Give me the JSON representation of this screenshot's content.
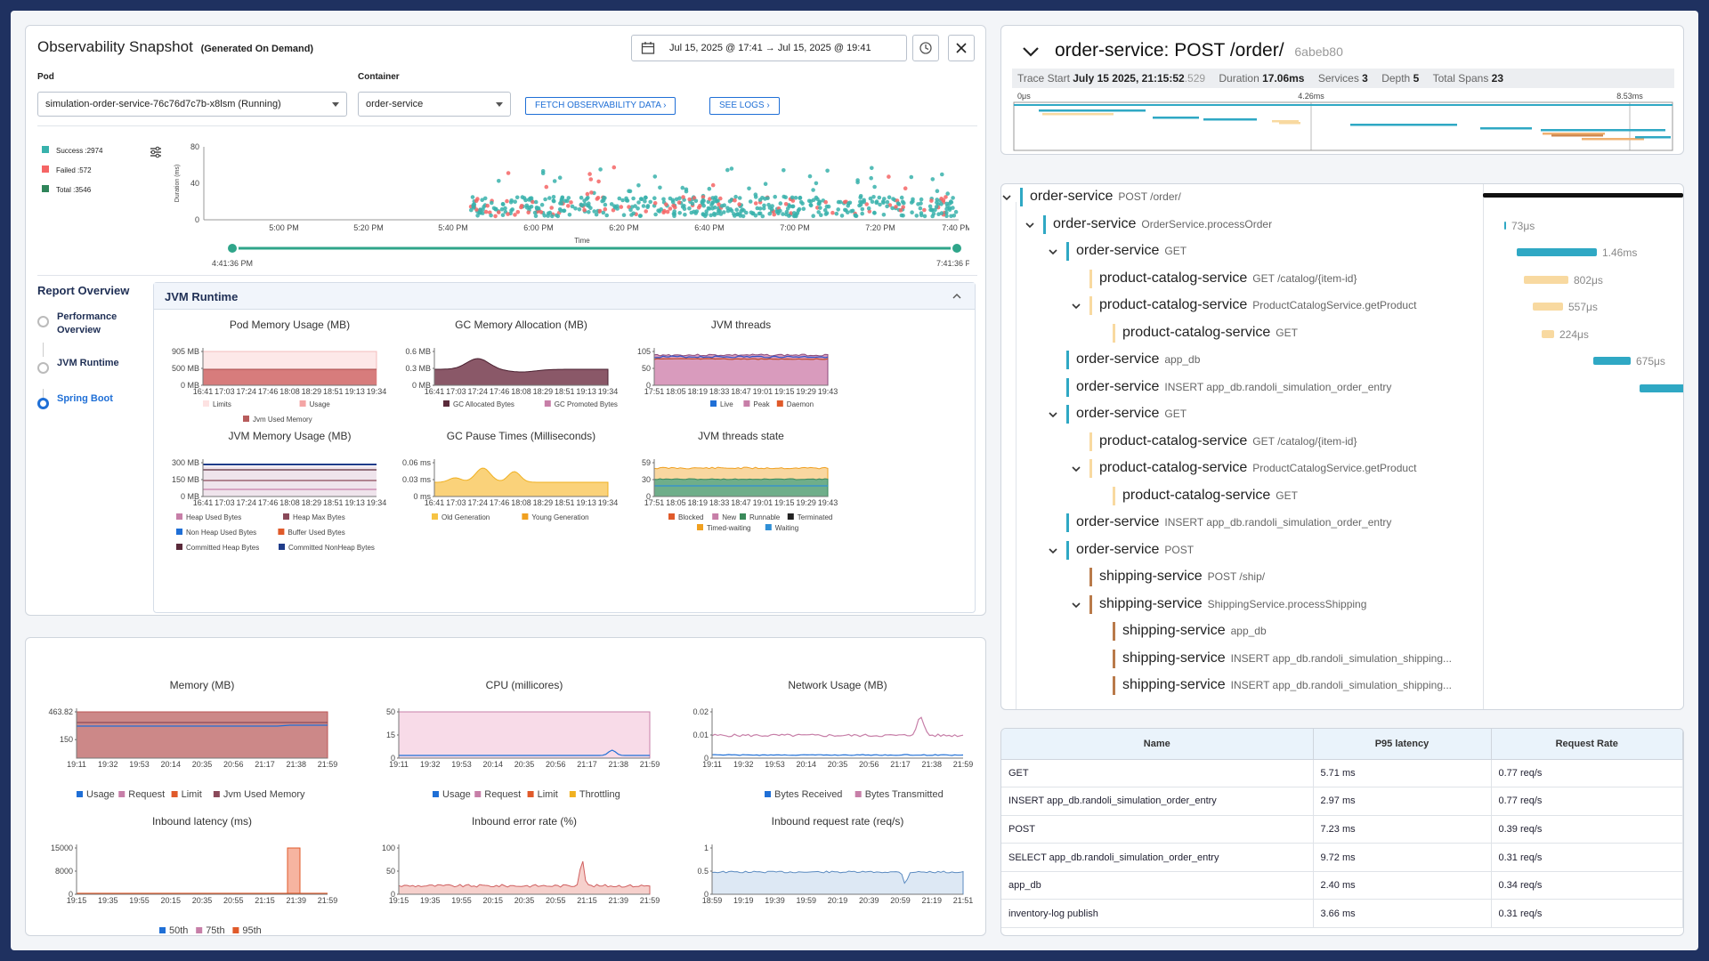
{
  "snapshot": {
    "title": "Observability Snapshot",
    "subtitle": "(Generated On Demand)",
    "date_range": "Jul 15, 2025 @ 17:41 → Jul 15, 2025 @ 19:41",
    "pod_label": "Pod",
    "pod_value": "simulation-order-service-76c76d7c7b-x8lsm (Running)",
    "container_label": "Container",
    "container_value": "order-service",
    "fetch_button": "FETCH OBSERVABILITY DATA",
    "logs_button": "SEE LOGS"
  },
  "scatter": {
    "legend": [
      {
        "label": "Success :2974",
        "color": "#38b2ac"
      },
      {
        "label": "Failed :572",
        "color": "#f56565"
      },
      {
        "label": "Total :3546",
        "color": "#2f855a"
      }
    ],
    "ylabel": "Duration (ms)",
    "xlabel": "Time",
    "yticks": [
      "80",
      "40",
      "0"
    ],
    "xticks": [
      "5:00 PM",
      "5:20 PM",
      "5:40 PM",
      "6:00 PM",
      "6:20 PM",
      "6:40 PM",
      "7:00 PM",
      "7:20 PM",
      "7:40 PM"
    ],
    "range_start": "4:41:36 PM",
    "range_end": "7:41:36 PM"
  },
  "report": {
    "title": "Report Overview",
    "items": [
      "Performance Overview",
      "JVM Runtime",
      "Spring Boot"
    ],
    "selected_index": 2,
    "section_title": "JVM Runtime"
  },
  "jvm_charts": [
    {
      "title": "Pod Memory Usage (MB)",
      "yticks": [
        "905 MB",
        "500 MB",
        "0 MB"
      ],
      "xticks": [
        "16:41",
        "17:03",
        "17:24",
        "17:46",
        "18:08",
        "18:29",
        "18:51",
        "19:13",
        "19:34"
      ],
      "legend": [
        {
          "label": "Limits",
          "color": "#fde2e2"
        },
        {
          "label": "Usage",
          "color": "#f4a5a5"
        },
        {
          "label": "Jvm Used Memory",
          "color": "#b85c5c"
        }
      ]
    },
    {
      "title": "GC Memory Allocation (MB)",
      "yticks": [
        "0.6 MB",
        "0.3 MB",
        "0 MB"
      ],
      "xticks": [
        "16:41",
        "17:03",
        "17:24",
        "17:46",
        "18:08",
        "18:29",
        "18:51",
        "19:13",
        "19:34"
      ],
      "legend": [
        {
          "label": "GC Allocated Bytes",
          "color": "#5a2a3a"
        },
        {
          "label": "GC Promoted Bytes",
          "color": "#c77fa8"
        }
      ]
    },
    {
      "title": "JVM threads",
      "yticks": [
        "105",
        "50",
        "0"
      ],
      "xticks": [
        "17:51",
        "18:05",
        "18:19",
        "18:33",
        "18:47",
        "19:01",
        "19:15",
        "19:29",
        "19:43"
      ],
      "legend": [
        {
          "label": "Live",
          "color": "#1f6fd6"
        },
        {
          "label": "Peak",
          "color": "#c77fa8"
        },
        {
          "label": "Daemon",
          "color": "#e05a2a"
        }
      ]
    },
    {
      "title": "JVM Memory Usage (MB)",
      "yticks": [
        "300 MB",
        "150 MB",
        "0 MB"
      ],
      "xticks": [
        "16:41",
        "17:03",
        "17:24",
        "17:46",
        "18:08",
        "18:29",
        "18:51",
        "19:13",
        "19:34"
      ],
      "legend": [
        {
          "label": "Heap Used Bytes",
          "color": "#c77fa8"
        },
        {
          "label": "Heap Max Bytes",
          "color": "#8a4a5a"
        },
        {
          "label": "Non Heap Used Bytes",
          "color": "#1f6fd6"
        },
        {
          "label": "Buffer Used Bytes",
          "color": "#e05a2a"
        },
        {
          "label": "Committed Heap Bytes",
          "color": "#5a2a3a"
        },
        {
          "label": "Committed NonHeap Bytes",
          "color": "#1f3c8a"
        }
      ]
    },
    {
      "title": "GC Pause Times (Milliseconds)",
      "yticks": [
        "0.06 ms",
        "0.03 ms",
        "0 ms"
      ],
      "xticks": [
        "16:41",
        "17:03",
        "17:24",
        "17:46",
        "18:08",
        "18:29",
        "18:51",
        "19:13",
        "19:34"
      ],
      "legend": [
        {
          "label": "Old Generation",
          "color": "#f6c343"
        },
        {
          "label": "Young Generation",
          "color": "#f0a020"
        }
      ]
    },
    {
      "title": "JVM threads state",
      "yticks": [
        "59",
        "30",
        "0"
      ],
      "xticks": [
        "17:51",
        "18:05",
        "18:19",
        "18:33",
        "18:47",
        "19:01",
        "19:15",
        "19:29",
        "19:43"
      ],
      "legend": [
        {
          "label": "Blocked",
          "color": "#e05a2a"
        },
        {
          "label": "New",
          "color": "#c77fa8"
        },
        {
          "label": "Runnable",
          "color": "#3a8a5a"
        },
        {
          "label": "Terminated",
          "color": "#222"
        },
        {
          "label": "Timed-waiting",
          "color": "#f0a020"
        },
        {
          "label": "Waiting",
          "color": "#2f8fd6"
        }
      ]
    }
  ],
  "bottom_charts": [
    {
      "title": "Memory (MB)",
      "yticks": [
        "463.82",
        "150"
      ],
      "xticks": [
        "19:11",
        "19:32",
        "19:53",
        "20:14",
        "20:35",
        "20:56",
        "21:17",
        "21:38",
        "21:59"
      ],
      "legend": [
        {
          "label": "Usage",
          "color": "#1f6fd6"
        },
        {
          "label": "Request",
          "color": "#c77fa8"
        },
        {
          "label": "Limit",
          "color": "#e05a2a"
        },
        {
          "label": "Jvm Used Memory",
          "color": "#8a4a5a"
        }
      ]
    },
    {
      "title": "CPU (millicores)",
      "yticks": [
        "50",
        "15",
        "0"
      ],
      "xticks": [
        "19:11",
        "19:32",
        "19:53",
        "20:14",
        "20:35",
        "20:56",
        "21:17",
        "21:38",
        "21:59"
      ],
      "legend": [
        {
          "label": "Usage",
          "color": "#1f6fd6"
        },
        {
          "label": "Request",
          "color": "#c77fa8"
        },
        {
          "label": "Limit",
          "color": "#e05a2a"
        },
        {
          "label": "Throttling",
          "color": "#f0b020"
        }
      ]
    },
    {
      "title": "Network Usage (MB)",
      "yticks": [
        "0.02",
        "0.01",
        "0"
      ],
      "xticks": [
        "19:11",
        "19:32",
        "19:53",
        "20:14",
        "20:35",
        "20:56",
        "21:17",
        "21:38",
        "21:59"
      ],
      "legend": [
        {
          "label": "Bytes Received",
          "color": "#1f6fd6"
        },
        {
          "label": "Bytes Transmitted",
          "color": "#c77fa8"
        }
      ]
    },
    {
      "title": "Inbound latency (ms)",
      "yticks": [
        "15000",
        "8000",
        "0"
      ],
      "xticks": [
        "19:15",
        "19:35",
        "19:55",
        "20:15",
        "20:35",
        "20:55",
        "21:15",
        "21:39",
        "21:59"
      ],
      "legend": [
        {
          "label": "50th",
          "color": "#1f6fd6"
        },
        {
          "label": "75th",
          "color": "#c77fa8"
        },
        {
          "label": "95th",
          "color": "#e05a2a"
        }
      ]
    },
    {
      "title": "Inbound error rate (%)",
      "yticks": [
        "100",
        "50",
        "0"
      ],
      "xticks": [
        "19:15",
        "19:35",
        "19:55",
        "20:15",
        "20:35",
        "20:55",
        "21:15",
        "21:39",
        "21:59"
      ],
      "legend": []
    },
    {
      "title": "Inbound request rate (req/s)",
      "yticks": [
        "1",
        "0.5",
        "0"
      ],
      "xticks": [
        "18:59",
        "19:19",
        "19:39",
        "19:59",
        "20:19",
        "20:39",
        "20:59",
        "21:19",
        "21:51"
      ],
      "legend": []
    }
  ],
  "trace": {
    "title": "order-service: POST /order/",
    "trace_id": "6abeb80",
    "start_label": "Trace Start",
    "start_value": "July 15 2025, 21:15:52",
    "start_ms": ".529",
    "duration_label": "Duration",
    "duration_value": "17.06ms",
    "services_label": "Services",
    "services_value": "3",
    "depth_label": "Depth",
    "depth_value": "5",
    "spans_label": "Total Spans",
    "spans_value": "23",
    "axis": [
      "0μs",
      "4.26ms",
      "8.53ms"
    ]
  },
  "spans": [
    {
      "svc": "order-service",
      "op": "POST /order/",
      "dur": ""
    },
    {
      "svc": "order-service",
      "op": "OrderService.processOrder",
      "dur": "73μs"
    },
    {
      "svc": "order-service",
      "op": "GET",
      "dur": "1.46ms"
    },
    {
      "svc": "product-catalog-service",
      "op": "GET /catalog/{item-id}",
      "dur": "802μs"
    },
    {
      "svc": "product-catalog-service",
      "op": "ProductCatalogService.getProduct",
      "dur": "557μs"
    },
    {
      "svc": "product-catalog-service",
      "op": "GET",
      "dur": "224μs"
    },
    {
      "svc": "order-service",
      "op": "app_db",
      "dur": "675μs"
    },
    {
      "svc": "order-service",
      "op": "INSERT app_db.randoli_simulation_order_entry",
      "dur": ""
    },
    {
      "svc": "order-service",
      "op": "GET",
      "dur": ""
    },
    {
      "svc": "product-catalog-service",
      "op": "GET /catalog/{item-id}",
      "dur": ""
    },
    {
      "svc": "product-catalog-service",
      "op": "ProductCatalogService.getProduct",
      "dur": ""
    },
    {
      "svc": "product-catalog-service",
      "op": "GET",
      "dur": ""
    },
    {
      "svc": "order-service",
      "op": "INSERT app_db.randoli_simulation_order_entry",
      "dur": ""
    },
    {
      "svc": "order-service",
      "op": "POST",
      "dur": ""
    },
    {
      "svc": "shipping-service",
      "op": "POST /ship/",
      "dur": ""
    },
    {
      "svc": "shipping-service",
      "op": "ShippingService.processShipping",
      "dur": ""
    },
    {
      "svc": "shipping-service",
      "op": "app_db",
      "dur": ""
    },
    {
      "svc": "shipping-service",
      "op": "INSERT app_db.randoli_simulation_shipping...",
      "dur": ""
    },
    {
      "svc": "shipping-service",
      "op": "INSERT app_db.randoli_simulation_shipping...",
      "dur": ""
    }
  ],
  "ops_table": {
    "headers": [
      "Name",
      "P95 latency",
      "Request Rate"
    ],
    "rows": [
      [
        "GET",
        "5.71 ms",
        "0.77 req/s"
      ],
      [
        "INSERT app_db.randoli_simulation_order_entry",
        "2.97 ms",
        "0.77 req/s"
      ],
      [
        "POST",
        "7.23 ms",
        "0.39 req/s"
      ],
      [
        "SELECT app_db.randoli_simulation_order_entry",
        "9.72 ms",
        "0.31 req/s"
      ],
      [
        "app_db",
        "2.40 ms",
        "0.34 req/s"
      ],
      [
        "inventory-log publish",
        "3.66 ms",
        "0.31 req/s"
      ]
    ]
  }
}
